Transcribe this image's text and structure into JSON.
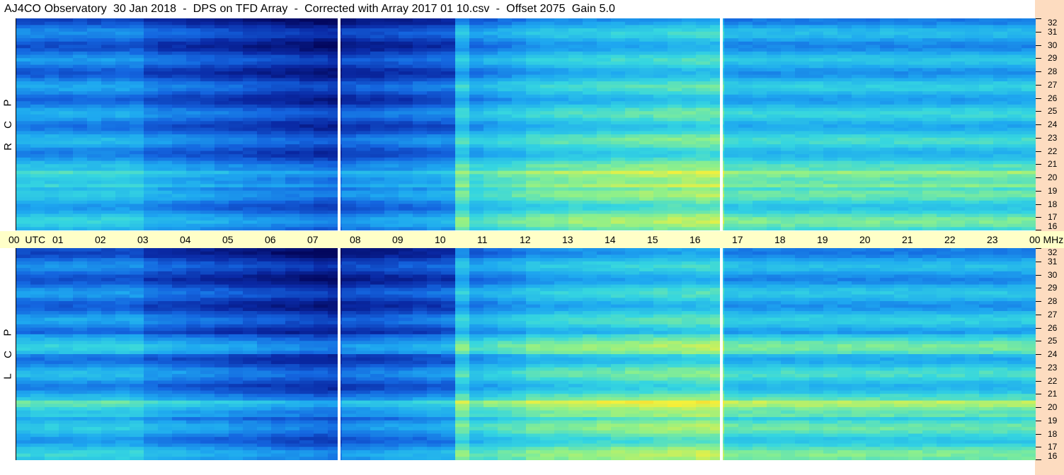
{
  "title": "AJ4CO Observatory  30 Jan 2018  -  DPS on TFD Array  -  Corrected with Array 2017 01 10.csv  -  Offset 2075  Gain 5.0",
  "panels": [
    {
      "id": "rcp",
      "label_letters": [
        "R",
        "C",
        "P"
      ]
    },
    {
      "id": "lcp",
      "label_letters": [
        "L",
        "C",
        "P"
      ]
    }
  ],
  "chart_data": {
    "type": "heatmap",
    "title": "AJ4CO Observatory  30 Jan 2018  -  DPS on TFD Array  -  Corrected with Array 2017 01 10.csv  -  Offset 2075  Gain 5.0",
    "x": {
      "unit": "UTC",
      "range": [
        0,
        24
      ],
      "tick_labels": [
        "00",
        "01",
        "02",
        "03",
        "04",
        "05",
        "06",
        "07",
        "08",
        "09",
        "10",
        "11",
        "12",
        "13",
        "14",
        "15",
        "16",
        "17",
        "18",
        "19",
        "20",
        "21",
        "22",
        "23",
        "00"
      ],
      "first_tick_suffix": "UTC"
    },
    "y": {
      "unit": "MHz",
      "range": [
        16,
        32
      ],
      "tick_labels": [
        "32",
        "31",
        "30",
        "29",
        "28",
        "27",
        "26",
        "25",
        "24",
        "23",
        "22",
        "21",
        "20",
        "19",
        "18",
        "17",
        "16"
      ]
    },
    "series": [
      {
        "name": "RCP",
        "axis_unit_label": "MHz",
        "gap_hours": [
          7.6,
          16.6
        ]
      },
      {
        "name": "LCP",
        "gap_hours": [
          7.6,
          16.6
        ]
      }
    ],
    "colormap": [
      "#03075e",
      "#0a2aa6",
      "#1466e0",
      "#1ea8f0",
      "#35d6e0",
      "#8ef08a",
      "#f5f03a",
      "#f7a020"
    ],
    "colors": {
      "background_axis": "#ffffc8",
      "right_strip": "#fddcc0",
      "gap_line": "#ffffff"
    }
  }
}
